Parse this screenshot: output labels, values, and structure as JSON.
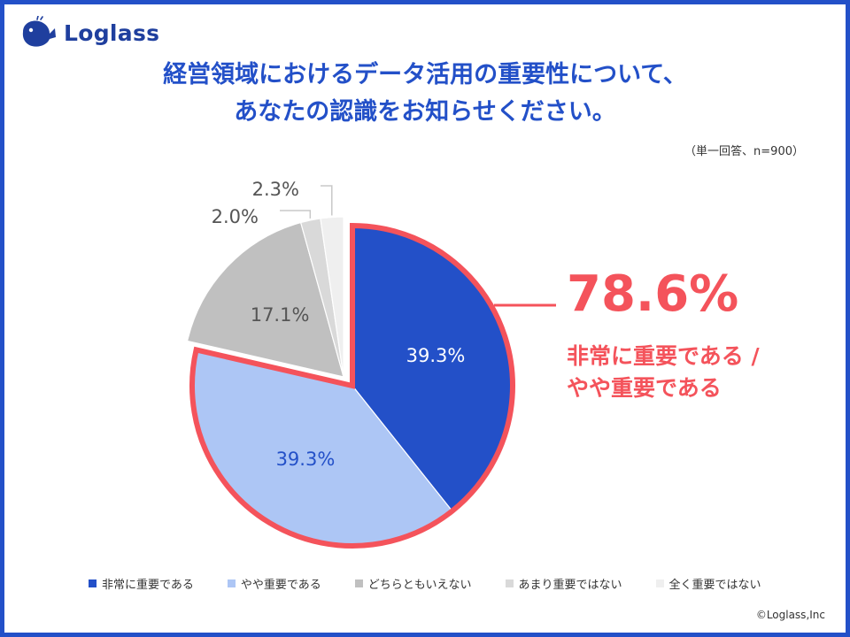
{
  "brand": {
    "name": "Loglass"
  },
  "title_lines": [
    "経営領域におけるデータ活用の重要性について、",
    "あなたの認識をお知らせください。"
  ],
  "note": "（単一回答、n=900）",
  "copyright": "©Loglass,Inc",
  "colors": {
    "frame": "#2350c8",
    "title": "#2350c8",
    "highlight": "#f4535b",
    "leader": "#c8c8c8"
  },
  "chart_data": {
    "type": "pie",
    "start_angle_deg": 0,
    "direction": "clockwise",
    "slices": [
      {
        "name": "非常に重要である",
        "value": 39.3,
        "label": "39.3%",
        "color": "#2350c8",
        "label_color": "#ffffff",
        "exploded": false
      },
      {
        "name": "やや重要である",
        "value": 39.3,
        "label": "39.3%",
        "color": "#adc6f5",
        "label_color": "#2350c8",
        "exploded": false
      },
      {
        "name": "どちらともいえない",
        "value": 17.1,
        "label": "17.1%",
        "color": "#c0c0c0",
        "label_color": "#555555",
        "exploded": true
      },
      {
        "name": "あまり重要ではない",
        "value": 2.0,
        "label": "2.0%",
        "color": "#d9d9d9",
        "label_color": "#555555",
        "exploded": true
      },
      {
        "name": "全く重要ではない",
        "value": 2.3,
        "label": "2.3%",
        "color": "#efefef",
        "label_color": "#555555",
        "exploded": true
      }
    ],
    "highlight": {
      "value": "78.6%",
      "lines": [
        "非常に重要である /",
        "やや重要である"
      ],
      "slices": [
        0,
        1
      ]
    },
    "legend_position": "bottom"
  }
}
